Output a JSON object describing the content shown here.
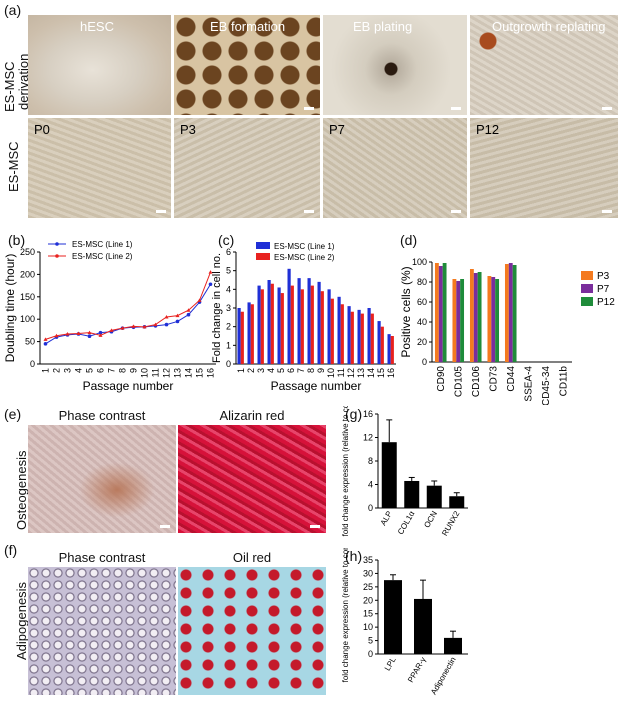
{
  "panels": {
    "a": "(a)",
    "b": "(b)",
    "c": "(c)",
    "d": "(d)",
    "e": "(e)",
    "f": "(f)",
    "g": "(g)",
    "h": "(h)"
  },
  "row_labels": {
    "derivation_1": "ES-MSC",
    "derivation_2": "derivation",
    "es_msc": "ES-MSC",
    "osteogenesis": "Osteogenesis",
    "adipogenesis": "Adipogenesis"
  },
  "derivation_photos": [
    "hESC",
    "EB formation",
    "EB plating",
    "Outgrowth replating"
  ],
  "passage_photos": [
    "P0",
    "P3",
    "P7",
    "P12"
  ],
  "osteo_titles": [
    "Phase contrast",
    "Alizarin red"
  ],
  "adipo_titles": [
    "Phase contrast",
    "Oil red"
  ],
  "chart_data": [
    {
      "id": "b",
      "type": "line",
      "xlabel": "Passage number",
      "ylabel": "Doubling time (hour)",
      "ylim": [
        0,
        250
      ],
      "yticks": [
        "0",
        "50",
        "100",
        "150",
        "200",
        "250"
      ],
      "x": [
        1,
        2,
        3,
        4,
        5,
        6,
        7,
        8,
        9,
        10,
        11,
        12,
        13,
        14,
        15,
        16
      ],
      "series": [
        {
          "name": "ES-MSC (Line 1)",
          "color": "#1f2fd6",
          "values": [
            45,
            60,
            65,
            67,
            62,
            70,
            72,
            80,
            82,
            83,
            85,
            88,
            95,
            110,
            138,
            178
          ]
        },
        {
          "name": "ES-MSC (Line 2)",
          "color": "#e8221f",
          "values": [
            55,
            63,
            67,
            68,
            70,
            64,
            75,
            80,
            84,
            83,
            88,
            105,
            108,
            120,
            142,
            205
          ]
        }
      ]
    },
    {
      "id": "c",
      "type": "bar",
      "ylabel": "Fold change in cell no.",
      "xlabel": "Passage number",
      "ylim": [
        0,
        6
      ],
      "yticks": [
        "0",
        "1",
        "2",
        "3",
        "4",
        "5",
        "6"
      ],
      "categories": [
        "1",
        "2",
        "3",
        "4",
        "5",
        "6",
        "7",
        "8",
        "9",
        "10",
        "11",
        "12",
        "13",
        "14",
        "15",
        "16"
      ],
      "series": [
        {
          "name": "ES-MSC (Line 1)",
          "color": "#1f2fd6",
          "values": [
            3.0,
            3.3,
            4.2,
            4.5,
            4.1,
            5.1,
            4.6,
            4.6,
            4.4,
            4.0,
            3.6,
            3.1,
            2.9,
            3.0,
            2.3,
            1.6
          ]
        },
        {
          "name": "ES-MSC (Line 2)",
          "color": "#e8221f",
          "values": [
            2.8,
            3.2,
            4.0,
            4.3,
            3.8,
            4.2,
            4.0,
            4.2,
            3.9,
            3.5,
            3.2,
            2.8,
            2.7,
            2.7,
            2.0,
            1.5
          ]
        }
      ]
    },
    {
      "id": "d",
      "type": "bar",
      "ylabel": "Positive cells (%)",
      "ylim": [
        0,
        100
      ],
      "yticks": [
        "0",
        "20",
        "40",
        "60",
        "80",
        "100"
      ],
      "categories": [
        "CD90",
        "CD105",
        "CD106",
        "CD73",
        "CD44",
        "SSEA-4",
        "CD45-34",
        "CD11b"
      ],
      "series": [
        {
          "name": "P3",
          "color": "#f47a1f",
          "values": [
            99,
            83,
            93,
            86,
            98,
            0,
            0,
            0
          ]
        },
        {
          "name": "P7",
          "color": "#7a2d9c",
          "values": [
            96,
            81,
            89,
            85,
            99,
            0,
            0,
            0
          ]
        },
        {
          "name": "P12",
          "color": "#1f8c3a",
          "values": [
            99,
            83,
            90,
            83,
            97,
            0,
            0,
            0
          ]
        }
      ]
    },
    {
      "id": "g",
      "type": "bar",
      "ylabel": "fold change expression (relative to control)",
      "ylim": [
        0,
        16
      ],
      "yticks": [
        "0",
        "4",
        "8",
        "12",
        "16"
      ],
      "categories": [
        "ALP",
        "COL1α",
        "OCN",
        "RUNX2"
      ],
      "values": [
        11.2,
        4.6,
        3.8,
        2.0
      ],
      "errors": [
        3.8,
        0.6,
        0.8,
        0.6
      ]
    },
    {
      "id": "h",
      "type": "bar",
      "ylabel": "fold change expression (relative to control)",
      "ylim": [
        0,
        35
      ],
      "yticks": [
        "0",
        "5",
        "10",
        "15",
        "20",
        "25",
        "30",
        "35"
      ],
      "categories": [
        "LPL",
        "PPAR-γ",
        "Adiponectin"
      ],
      "values": [
        27.5,
        20.5,
        6.0
      ],
      "errors": [
        2.0,
        7.0,
        2.5
      ]
    }
  ]
}
